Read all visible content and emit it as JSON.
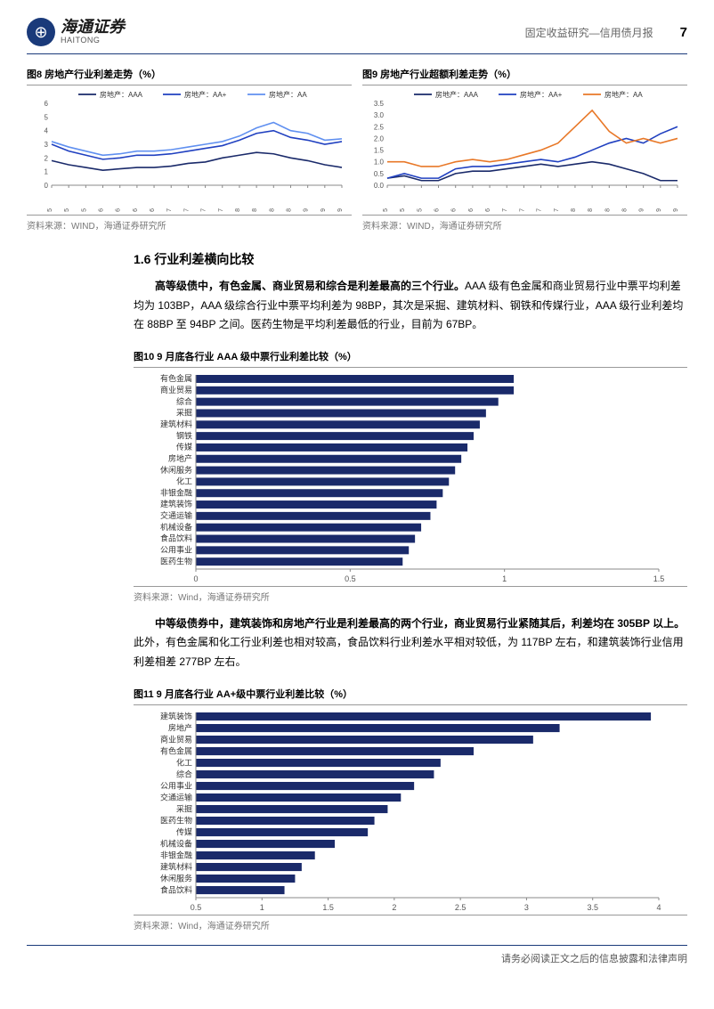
{
  "header": {
    "logo_cn": "海通证券",
    "logo_en": "HAITONG",
    "doc_type": "固定收益研究—信用债月报",
    "page": "7"
  },
  "chart8": {
    "title": "图8  房地产行业利差走势（%）",
    "source": "资料来源：WIND，海通证券研究所",
    "legend": [
      {
        "label": "房地产：AAA",
        "color": "#1a2a6a"
      },
      {
        "label": "房地产：AA+",
        "color": "#2040c0"
      },
      {
        "label": "房地产：AA",
        "color": "#6090f0"
      }
    ],
    "x_labels": [
      "Apr-15",
      "Jul-15",
      "Oct-15",
      "Jan-16",
      "Apr-16",
      "Jul-16",
      "Oct-16",
      "Jan-17",
      "Apr-17",
      "Jul-17",
      "Oct-17",
      "Jan-18",
      "Apr-18",
      "Jul-18",
      "Oct-18",
      "Jan-19",
      "Apr-19",
      "Jul-19"
    ],
    "ylim": [
      0,
      6
    ],
    "ystep": 1,
    "series": {
      "aaa": [
        1.8,
        1.5,
        1.3,
        1.1,
        1.2,
        1.3,
        1.3,
        1.4,
        1.6,
        1.7,
        2.0,
        2.2,
        2.4,
        2.3,
        2.0,
        1.8,
        1.5,
        1.3
      ],
      "aa_plus": [
        3.0,
        2.5,
        2.2,
        1.9,
        2.0,
        2.2,
        2.2,
        2.3,
        2.5,
        2.7,
        2.9,
        3.3,
        3.8,
        4.0,
        3.5,
        3.3,
        3.0,
        3.2
      ],
      "aa": [
        3.2,
        2.8,
        2.5,
        2.2,
        2.3,
        2.5,
        2.5,
        2.6,
        2.8,
        3.0,
        3.2,
        3.6,
        4.2,
        4.6,
        4.0,
        3.8,
        3.3,
        3.4
      ]
    }
  },
  "chart9": {
    "title": "图9  房地产行业超额利差走势（%）",
    "source": "资料来源：WIND，海通证券研究所",
    "legend": [
      {
        "label": "房地产：AAA",
        "color": "#1a2a6a"
      },
      {
        "label": "房地产：AA+",
        "color": "#2040c0"
      },
      {
        "label": "房地产：AA",
        "color": "#e87828"
      }
    ],
    "x_labels": [
      "Apr-15",
      "Jul-15",
      "Oct-15",
      "Jan-16",
      "Apr-16",
      "Jul-16",
      "Oct-16",
      "Jan-17",
      "Apr-17",
      "Jul-17",
      "Oct-17",
      "Jan-18",
      "Apr-18",
      "Jul-18",
      "Oct-18",
      "Jan-19",
      "Apr-19",
      "Jul-19"
    ],
    "ylim": [
      0,
      3.5
    ],
    "ystep": 0.5,
    "series": {
      "aaa": [
        0.3,
        0.4,
        0.2,
        0.2,
        0.5,
        0.6,
        0.6,
        0.7,
        0.8,
        0.9,
        0.8,
        0.9,
        1.0,
        0.9,
        0.7,
        0.5,
        0.2,
        0.2
      ],
      "aa_plus": [
        0.3,
        0.5,
        0.3,
        0.3,
        0.7,
        0.8,
        0.8,
        0.9,
        1.0,
        1.1,
        1.0,
        1.2,
        1.5,
        1.8,
        2.0,
        1.8,
        2.2,
        2.5
      ],
      "aa": [
        1.0,
        1.0,
        0.8,
        0.8,
        1.0,
        1.1,
        1.0,
        1.1,
        1.3,
        1.5,
        1.8,
        2.5,
        3.2,
        2.3,
        1.8,
        2.0,
        1.8,
        2.0
      ]
    }
  },
  "section": {
    "heading": "1.6 行业利差横向比较",
    "para1_bold": "高等级债中，有色金属、商业贸易和综合是利差最高的三个行业。",
    "para1_rest": "AAA 级有色金属和商业贸易行业中票平均利差均为 103BP，AAA 级综合行业中票平均利差为 98BP，其次是采掘、建筑材料、钢铁和传媒行业，AAA 级行业利差均在 88BP 至 94BP 之间。医药生物是平均利差最低的行业，目前为 67BP。",
    "para2_bold": "中等级债券中，建筑装饰和房地产行业是利差最高的两个行业，商业贸易行业紧随其后，利差均在 305BP 以上。",
    "para2_rest": "此外，有色金属和化工行业利差也相对较高，食品饮料行业利差水平相对较低，为 117BP 左右，和建筑装饰行业信用利差相差 277BP 左右。"
  },
  "chart10": {
    "title": "图10 9 月底各行业 AAA 级中票行业利差比较（%）",
    "source": "资料来源：Wind，海通证券研究所",
    "bar_color": "#1a2a6a",
    "xlim": [
      0,
      1.5
    ],
    "xstep": 0.5,
    "bars": [
      {
        "label": "有色金属",
        "value": 1.03
      },
      {
        "label": "商业贸易",
        "value": 1.03
      },
      {
        "label": "综合",
        "value": 0.98
      },
      {
        "label": "采掘",
        "value": 0.94
      },
      {
        "label": "建筑材料",
        "value": 0.92
      },
      {
        "label": "钢铁",
        "value": 0.9
      },
      {
        "label": "传媒",
        "value": 0.88
      },
      {
        "label": "房地产",
        "value": 0.86
      },
      {
        "label": "休闲服务",
        "value": 0.84
      },
      {
        "label": "化工",
        "value": 0.82
      },
      {
        "label": "非银金融",
        "value": 0.8
      },
      {
        "label": "建筑装饰",
        "value": 0.78
      },
      {
        "label": "交通运输",
        "value": 0.76
      },
      {
        "label": "机械设备",
        "value": 0.73
      },
      {
        "label": "食品饮料",
        "value": 0.71
      },
      {
        "label": "公用事业",
        "value": 0.69
      },
      {
        "label": "医药生物",
        "value": 0.67
      }
    ]
  },
  "chart11": {
    "title": "图11 9 月底各行业 AA+级中票行业利差比较（%）",
    "source": "资料来源：Wind，海通证券研究所",
    "bar_color": "#1a2a6a",
    "xlim": [
      0.5,
      4
    ],
    "xstep": 0.5,
    "bars": [
      {
        "label": "建筑装饰",
        "value": 3.94
      },
      {
        "label": "房地产",
        "value": 3.25
      },
      {
        "label": "商业贸易",
        "value": 3.05
      },
      {
        "label": "有色金属",
        "value": 2.6
      },
      {
        "label": "化工",
        "value": 2.35
      },
      {
        "label": "综合",
        "value": 2.3
      },
      {
        "label": "公用事业",
        "value": 2.15
      },
      {
        "label": "交通运输",
        "value": 2.05
      },
      {
        "label": "采掘",
        "value": 1.95
      },
      {
        "label": "医药生物",
        "value": 1.85
      },
      {
        "label": "传媒",
        "value": 1.8
      },
      {
        "label": "机械设备",
        "value": 1.55
      },
      {
        "label": "非银金融",
        "value": 1.4
      },
      {
        "label": "建筑材料",
        "value": 1.3
      },
      {
        "label": "休闲服务",
        "value": 1.25
      },
      {
        "label": "食品饮料",
        "value": 1.17
      }
    ]
  },
  "footer": "请务必阅读正文之后的信息披露和法律声明"
}
